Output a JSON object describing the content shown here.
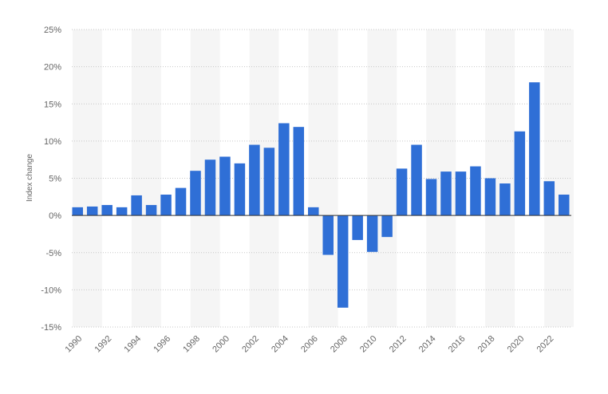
{
  "chart_data": {
    "type": "bar",
    "title": "",
    "xlabel": "",
    "ylabel": "Index change",
    "ylim": [
      -15,
      25
    ],
    "yticks": [
      25,
      20,
      15,
      10,
      5,
      0,
      -5,
      -10,
      -15
    ],
    "ytick_labels": [
      "25%",
      "20%",
      "15%",
      "10%",
      "5%",
      "0%",
      "-5%",
      "-10%",
      "-15%"
    ],
    "xtick_labels": [
      "1990",
      "1992",
      "1994",
      "1996",
      "1998",
      "2000",
      "2002",
      "2004",
      "2006",
      "2008",
      "2010",
      "2012",
      "2014",
      "2016",
      "2018",
      "2020",
      "2022"
    ],
    "categories": [
      "1990",
      "1991",
      "1992",
      "1993",
      "1994",
      "1995",
      "1996",
      "1997",
      "1998",
      "1999",
      "2000",
      "2001",
      "2002",
      "2003",
      "2004",
      "2005",
      "2006",
      "2007",
      "2008",
      "2009",
      "2010",
      "2011",
      "2012",
      "2013",
      "2014",
      "2015",
      "2016",
      "2017",
      "2018",
      "2019",
      "2020",
      "2021",
      "2022",
      "2023"
    ],
    "values": [
      1.1,
      1.2,
      1.4,
      1.1,
      2.7,
      1.4,
      2.8,
      3.7,
      6.0,
      7.5,
      7.9,
      7.0,
      9.5,
      9.1,
      12.4,
      11.9,
      1.1,
      -5.3,
      -12.4,
      -3.3,
      -4.9,
      -2.9,
      6.3,
      9.5,
      4.9,
      5.9,
      5.9,
      6.6,
      5.0,
      4.3,
      11.3,
      17.9,
      4.6,
      2.8
    ],
    "grid": true,
    "colors": {
      "bar": "#2f6fd6",
      "grid": "#c7c7c7",
      "band": "#f5f5f5",
      "zero_line": "#333333",
      "text": "#666666"
    }
  }
}
